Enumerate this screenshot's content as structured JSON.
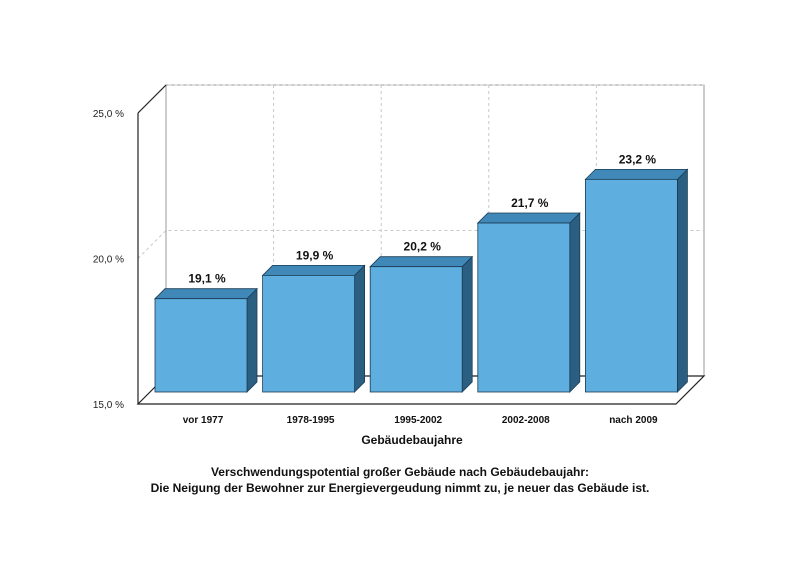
{
  "chart_data": {
    "type": "bar",
    "categories": [
      "vor 1977",
      "1978-1995",
      "1995-2002",
      "2002-2008",
      "nach 2009"
    ],
    "values": [
      19.1,
      19.9,
      20.2,
      21.7,
      23.2
    ],
    "data_labels": [
      "19,1 %",
      "19,9 %",
      "20,2 %",
      "21,7 %",
      "23,2 %"
    ],
    "xlabel": "Gebäudebaujahre",
    "ylabel": "",
    "ylim": [
      15,
      25
    ],
    "yticks": [
      {
        "value": 15,
        "label": "15,0 %"
      },
      {
        "value": 20,
        "label": "20,0 %"
      },
      {
        "value": 25,
        "label": "25,0 %"
      }
    ],
    "grid": true,
    "three_d": true,
    "colors": {
      "bar_front": "#5eaee0",
      "bar_top": "#3f88b8",
      "bar_side": "#2a5f82",
      "grid": "#c8c8c8"
    }
  },
  "caption": {
    "line1": "Verschwendungspotential großer Gebäude nach Gebäudebaujahr:",
    "line2": "Die Neigung der Bewohner zur Energievergeudung nimmt zu, je neuer das Gebäude ist."
  }
}
